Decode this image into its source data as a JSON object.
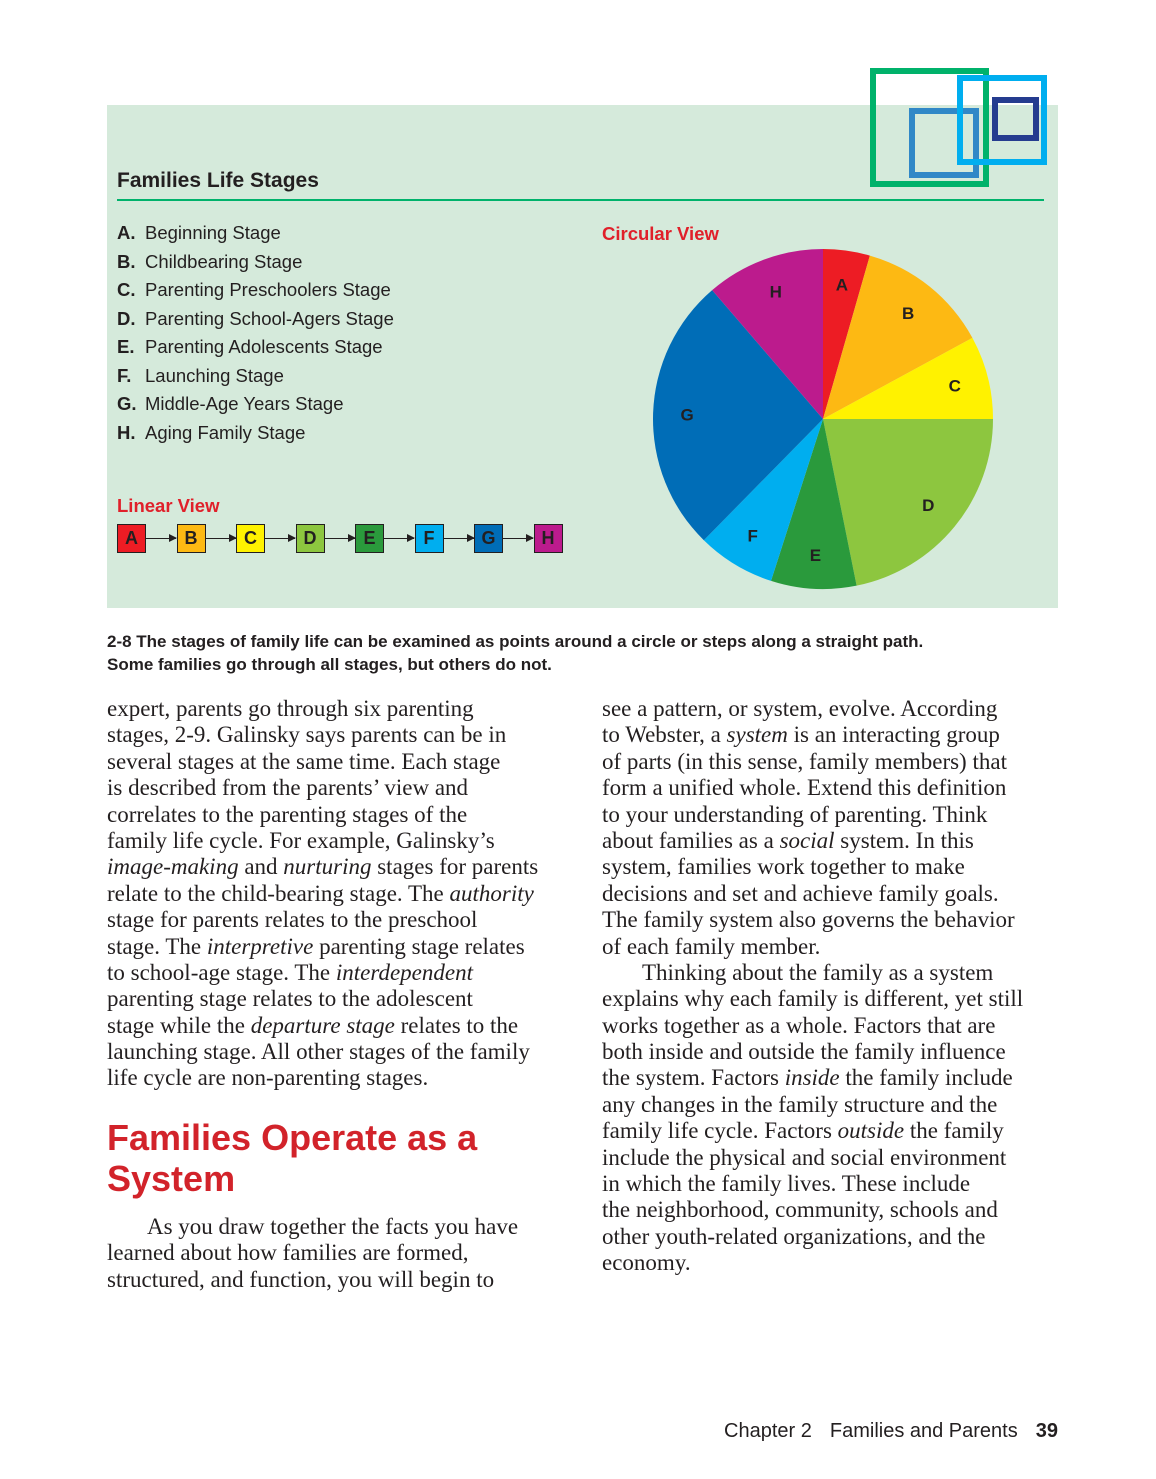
{
  "figure": {
    "title": "Families Life Stages",
    "stages": [
      {
        "letter": "A.",
        "name": "Beginning Stage"
      },
      {
        "letter": "B.",
        "name": "Childbearing Stage"
      },
      {
        "letter": "C.",
        "name": "Parenting Preschoolers Stage"
      },
      {
        "letter": "D.",
        "name": "Parenting School-Agers Stage"
      },
      {
        "letter": "E.",
        "name": "Parenting Adolescents Stage"
      },
      {
        "letter": "F.",
        "name": "Launching Stage"
      },
      {
        "letter": "G.",
        "name": "Middle-Age Years Stage"
      },
      {
        "letter": "H.",
        "name": "Aging Family Stage"
      }
    ],
    "linear_label": "Linear View",
    "circular_label": "Circular View",
    "caption_line1": "2-8 The stages of family life can be examined as points around a circle or steps along a straight path.",
    "caption_line2": "Some families go through all stages, but others do not.",
    "colors": {
      "background": "#d5eadb",
      "rule": "#00b26b",
      "label_red": "#e0202a"
    }
  },
  "chart_data": {
    "type": "pie",
    "categories": [
      "A",
      "B",
      "C",
      "D",
      "E",
      "F",
      "G",
      "H"
    ],
    "values": [
      16,
      45.5,
      28.5,
      78.6,
      29.2,
      26.7,
      94.8,
      40.7
    ],
    "unit": "degrees of circle (estimated)",
    "colors": [
      "#ed1c24",
      "#fdb913",
      "#fff200",
      "#8dc63f",
      "#2a9a3c",
      "#00aeef",
      "#006db7",
      "#bc1b8d"
    ],
    "start": "top, clockwise",
    "title": "Circular View"
  },
  "body": {
    "left": [
      [
        {
          "t": "expert, parents go through six parenting"
        }
      ],
      [
        {
          "t": "stages, 2-9. Galinsky says parents can be in"
        }
      ],
      [
        {
          "t": "several stages at the same time. Each stage"
        }
      ],
      [
        {
          "t": "is described from the parents’ view and"
        }
      ],
      [
        {
          "t": "correlates to the parenting stages of the"
        }
      ],
      [
        {
          "t": "family life cycle. For example, Galinsky’s"
        }
      ],
      [
        {
          "t": "image-making",
          "i": true
        },
        {
          "t": " and "
        },
        {
          "t": "nurturing",
          "i": true
        },
        {
          "t": " stages for parents"
        }
      ],
      [
        {
          "t": "relate to the child-bearing stage. The "
        },
        {
          "t": "authority",
          "i": true
        }
      ],
      [
        {
          "t": "stage for parents relates to the preschool"
        }
      ],
      [
        {
          "t": "stage. The "
        },
        {
          "t": "interpretive",
          "i": true
        },
        {
          "t": " parenting stage relates"
        }
      ],
      [
        {
          "t": "to school-age stage. The "
        },
        {
          "t": "interdependent",
          "i": true
        }
      ],
      [
        {
          "t": "parenting stage relates to the adolescent"
        }
      ],
      [
        {
          "t": "stage while the "
        },
        {
          "t": "departure stage",
          "i": true
        },
        {
          "t": " relates to the"
        }
      ],
      [
        {
          "t": "launching stage. All other stages of the family"
        }
      ],
      [
        {
          "t": "life cycle are non-parenting stages."
        }
      ]
    ],
    "heading_line1": "Families Operate as a",
    "heading_line2": "System",
    "left2": [
      [
        {
          "t": "As you draw together the facts you have",
          "indent": true
        }
      ],
      [
        {
          "t": "learned about how families are formed,"
        }
      ],
      [
        {
          "t": "structured, and function, you will begin to"
        }
      ]
    ],
    "right": [
      [
        {
          "t": "see a pattern, or system, evolve. According"
        }
      ],
      [
        {
          "t": "to Webster, a "
        },
        {
          "t": "system",
          "i": true
        },
        {
          "t": " is an interacting group"
        }
      ],
      [
        {
          "t": "of parts (in this sense, family members) that"
        }
      ],
      [
        {
          "t": "form a unified whole. Extend this definition"
        }
      ],
      [
        {
          "t": "to your understanding of parenting. Think"
        }
      ],
      [
        {
          "t": "about families as a "
        },
        {
          "t": "social",
          "i": true
        },
        {
          "t": " system. In this"
        }
      ],
      [
        {
          "t": "system, families work together to make"
        }
      ],
      [
        {
          "t": "decisions and set and achieve family goals."
        }
      ],
      [
        {
          "t": "The family system also governs the behavior"
        }
      ],
      [
        {
          "t": "of each family member."
        }
      ],
      [
        {
          "t": "Thinking about the family as a system",
          "indent": true
        }
      ],
      [
        {
          "t": "explains why each family is different, yet still"
        }
      ],
      [
        {
          "t": "works together as a whole. Factors that are"
        }
      ],
      [
        {
          "t": "both inside and outside the family influence"
        }
      ],
      [
        {
          "t": "the system. Factors "
        },
        {
          "t": "inside",
          "i": true
        },
        {
          "t": " the family include"
        }
      ],
      [
        {
          "t": "any changes in the family structure and the"
        }
      ],
      [
        {
          "t": "family life cycle. Factors "
        },
        {
          "t": "outside",
          "i": true
        },
        {
          "t": " the family"
        }
      ],
      [
        {
          "t": "include the physical and social environment"
        }
      ],
      [
        {
          "t": "in which the family lives. These include"
        }
      ],
      [
        {
          "t": "the neighborhood, community, schools and"
        }
      ],
      [
        {
          "t": "other youth-related organizations, and the"
        }
      ],
      [
        {
          "t": "economy."
        }
      ]
    ]
  },
  "footer": {
    "chapter": "Chapter 2",
    "title": "Families and Parents",
    "page": "39"
  }
}
